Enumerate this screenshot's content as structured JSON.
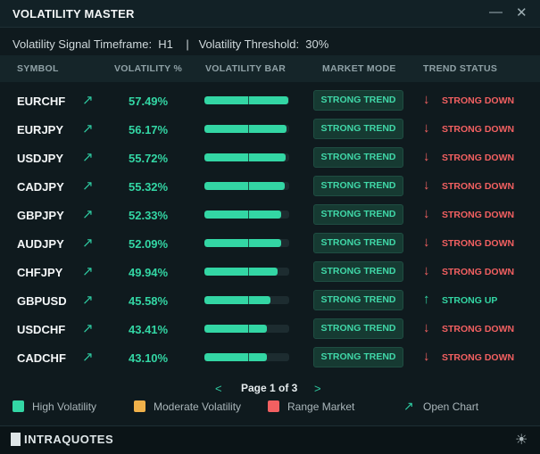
{
  "title": "VOLATILITY MASTER",
  "window": {
    "minimize_icon": "—",
    "close_icon": "✕"
  },
  "info": "Volatility Signal Timeframe:  H1    |   Volatility Threshold:  30%",
  "columns": [
    "SYMBOL",
    "VOLATILITY %",
    "VOLATILITY BAR",
    "MARKET MODE",
    "TREND STATUS"
  ],
  "rows": [
    {
      "symbol": "EURCHF",
      "volatility": "57.49%",
      "level": 0.99,
      "mode": "STRONG TREND",
      "trend": "STRONG DOWN",
      "dir": "down"
    },
    {
      "symbol": "EURJPY",
      "volatility": "56.17%",
      "level": 0.97,
      "mode": "STRONG TREND",
      "trend": "STRONG DOWN",
      "dir": "down"
    },
    {
      "symbol": "USDJPY",
      "volatility": "55.72%",
      "level": 0.96,
      "mode": "STRONG TREND",
      "trend": "STRONG DOWN",
      "dir": "down"
    },
    {
      "symbol": "CADJPY",
      "volatility": "55.32%",
      "level": 0.95,
      "mode": "STRONG TREND",
      "trend": "STRONG DOWN",
      "dir": "down"
    },
    {
      "symbol": "GBPJPY",
      "volatility": "52.33%",
      "level": 0.9,
      "mode": "STRONG TREND",
      "trend": "STRONG DOWN",
      "dir": "down"
    },
    {
      "symbol": "AUDJPY",
      "volatility": "52.09%",
      "level": 0.9,
      "mode": "STRONG TREND",
      "trend": "STRONG DOWN",
      "dir": "down"
    },
    {
      "symbol": "CHFJPY",
      "volatility": "49.94%",
      "level": 0.86,
      "mode": "STRONG TREND",
      "trend": "STRONG DOWN",
      "dir": "down"
    },
    {
      "symbol": "GBPUSD",
      "volatility": "45.58%",
      "level": 0.78,
      "mode": "STRONG TREND",
      "trend": "STRONG UP",
      "dir": "up"
    },
    {
      "symbol": "USDCHF",
      "volatility": "43.41%",
      "level": 0.74,
      "mode": "STRONG TREND",
      "trend": "STRONG DOWN",
      "dir": "down"
    },
    {
      "symbol": "CADCHF",
      "volatility": "43.10%",
      "level": 0.74,
      "mode": "STRONG TREND",
      "trend": "STRONG DOWN",
      "dir": "down"
    }
  ],
  "icons": {
    "chart_arrow": "↗",
    "trend_down": "↓",
    "trend_up": "↑"
  },
  "pagination": {
    "prev": "<",
    "label": "Page 1 of 3",
    "next": ">"
  },
  "legend": [
    {
      "label": "High Volatility",
      "color": "#33d6a4"
    },
    {
      "label": "Moderate Volatility",
      "color": "#f0b14a"
    },
    {
      "label": "Range Market",
      "color": "#f26061"
    },
    {
      "label": "Open Chart",
      "icon": "↗"
    }
  ],
  "footer": {
    "brand": "INTRAQUOTES",
    "theme_icon": "☀"
  }
}
